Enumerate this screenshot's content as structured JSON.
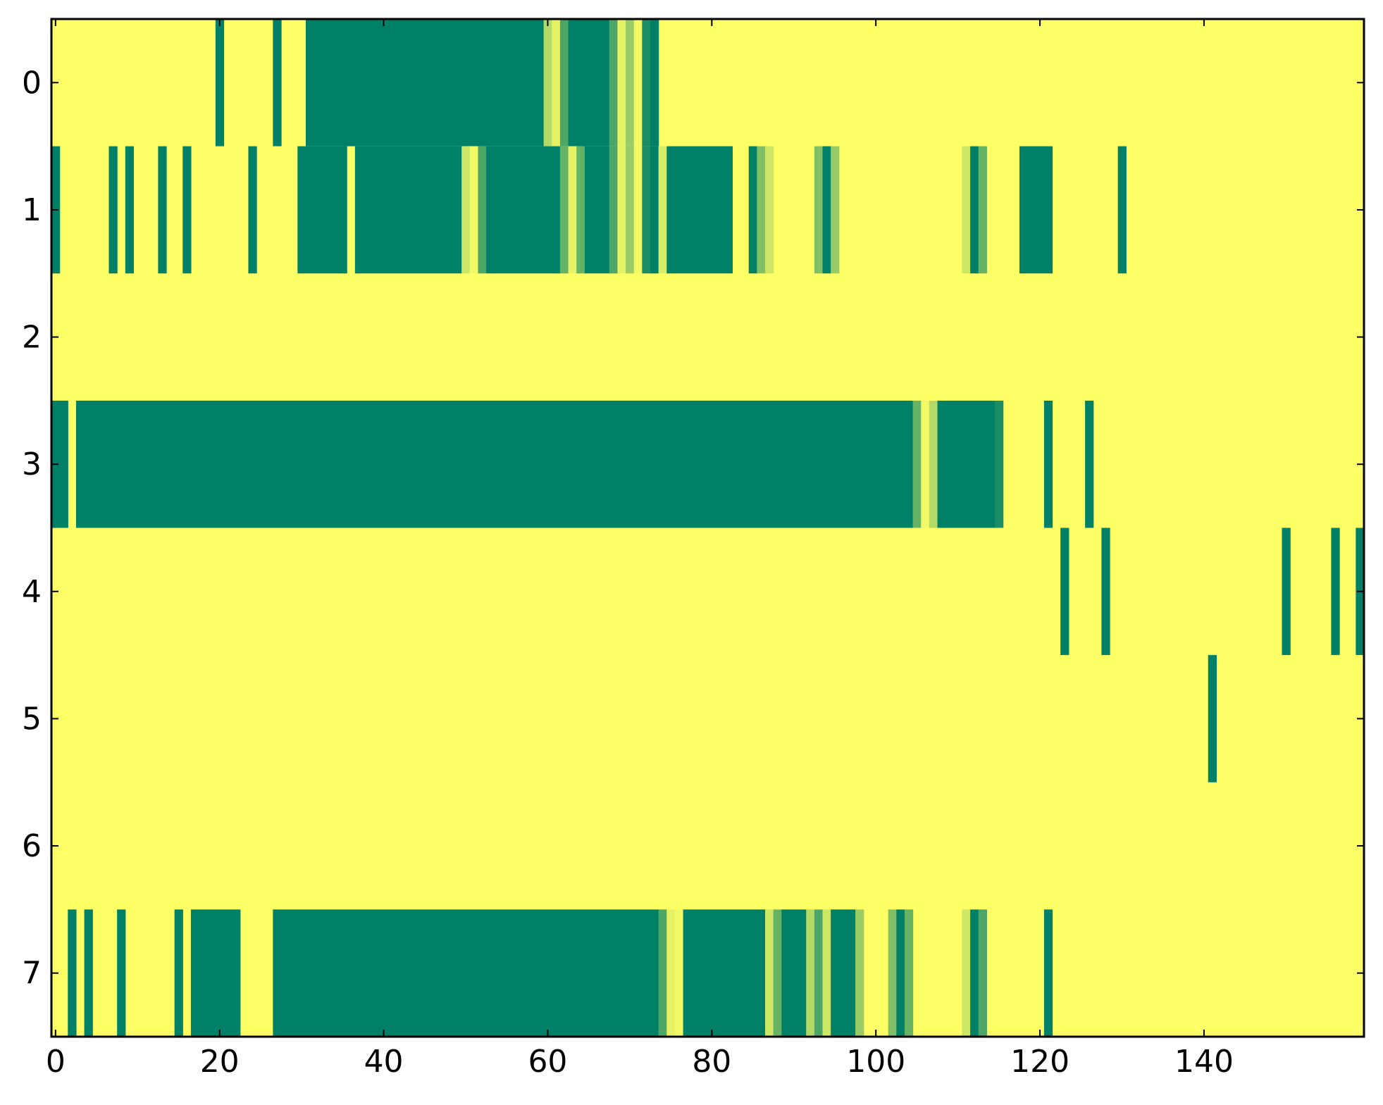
{
  "chart_data": {
    "type": "heatmap",
    "title": "",
    "xlabel": "",
    "ylabel": "",
    "xlim": [
      -0.5,
      159.5
    ],
    "ylim": [
      7.5,
      -0.5
    ],
    "x_ticks": [
      "0",
      "20",
      "40",
      "60",
      "80",
      "100",
      "120",
      "140"
    ],
    "y_ticks": [
      "0",
      "1",
      "2",
      "3",
      "4",
      "5",
      "6",
      "7"
    ],
    "colormap": "summer",
    "value_range": [
      0,
      1
    ],
    "background_value": 1.0,
    "rows": [
      {
        "row": 0,
        "segments": [
          [
            20,
            20,
            0
          ],
          [
            27,
            27,
            0
          ],
          [
            31,
            59,
            0
          ],
          [
            60,
            60,
            0.7
          ],
          [
            61,
            61,
            0.9
          ],
          [
            62,
            62,
            0.3
          ],
          [
            63,
            67,
            0
          ],
          [
            68,
            68,
            0.3
          ],
          [
            69,
            69,
            0.9
          ],
          [
            70,
            70,
            0.6
          ],
          [
            71,
            71,
            0.95
          ],
          [
            72,
            72,
            0.1
          ],
          [
            73,
            73,
            0
          ]
        ]
      },
      {
        "row": 1,
        "segments": [
          [
            0,
            0,
            0
          ],
          [
            7,
            7,
            0
          ],
          [
            9,
            9,
            0
          ],
          [
            13,
            13,
            0
          ],
          [
            16,
            16,
            0
          ],
          [
            24,
            24,
            0
          ],
          [
            30,
            35,
            0
          ],
          [
            37,
            49,
            0
          ],
          [
            50,
            50,
            0.8
          ],
          [
            51,
            51,
            0.95
          ],
          [
            52,
            52,
            0.3
          ],
          [
            53,
            61,
            0
          ],
          [
            62,
            62,
            0.4
          ],
          [
            63,
            63,
            0.9
          ],
          [
            64,
            64,
            0.4
          ],
          [
            65,
            67,
            0
          ],
          [
            68,
            68,
            0.3
          ],
          [
            69,
            69,
            0.9
          ],
          [
            70,
            70,
            0.6
          ],
          [
            71,
            71,
            0.95
          ],
          [
            72,
            72,
            0.1
          ],
          [
            73,
            73,
            0
          ],
          [
            74,
            74,
            0.85
          ],
          [
            75,
            82,
            0
          ],
          [
            85,
            85,
            0
          ],
          [
            86,
            86,
            0.5
          ],
          [
            87,
            87,
            0.8
          ],
          [
            93,
            93,
            0.5
          ],
          [
            94,
            94,
            0
          ],
          [
            95,
            95,
            0.6
          ],
          [
            111,
            111,
            0.8
          ],
          [
            112,
            112,
            0
          ],
          [
            113,
            113,
            0.4
          ],
          [
            118,
            121,
            0
          ],
          [
            130,
            130,
            0
          ]
        ]
      },
      {
        "row": 2,
        "segments": []
      },
      {
        "row": 3,
        "segments": [
          [
            0,
            1,
            0
          ],
          [
            3,
            104,
            0
          ],
          [
            105,
            105,
            0.4
          ],
          [
            106,
            106,
            0.95
          ],
          [
            107,
            107,
            0.7
          ],
          [
            108,
            114,
            0
          ],
          [
            115,
            115,
            0.1
          ],
          [
            121,
            121,
            0
          ],
          [
            126,
            126,
            0
          ]
        ]
      },
      {
        "row": 4,
        "segments": [
          [
            123,
            123,
            0
          ],
          [
            128,
            128,
            0
          ],
          [
            150,
            150,
            0
          ],
          [
            156,
            156,
            0
          ],
          [
            159,
            159,
            0
          ]
        ]
      },
      {
        "row": 5,
        "segments": [
          [
            141,
            141,
            0
          ]
        ]
      },
      {
        "row": 6,
        "segments": []
      },
      {
        "row": 7,
        "segments": [
          [
            2,
            2,
            0
          ],
          [
            4,
            4,
            0
          ],
          [
            8,
            8,
            0
          ],
          [
            15,
            15,
            0
          ],
          [
            17,
            22,
            0
          ],
          [
            27,
            73,
            0
          ],
          [
            74,
            74,
            0.3
          ],
          [
            75,
            75,
            0.9
          ],
          [
            76,
            76,
            0.95
          ],
          [
            77,
            86,
            0
          ],
          [
            87,
            87,
            0.8
          ],
          [
            88,
            88,
            0.4
          ],
          [
            89,
            91,
            0
          ],
          [
            92,
            92,
            0.7
          ],
          [
            93,
            93,
            0.3
          ],
          [
            94,
            94,
            0.8
          ],
          [
            95,
            97,
            0
          ],
          [
            98,
            98,
            0.6
          ],
          [
            102,
            102,
            0.5
          ],
          [
            103,
            103,
            0
          ],
          [
            104,
            104,
            0.4
          ],
          [
            111,
            111,
            0.8
          ],
          [
            112,
            112,
            0
          ],
          [
            113,
            113,
            0.3
          ],
          [
            121,
            121,
            0
          ]
        ]
      }
    ]
  }
}
